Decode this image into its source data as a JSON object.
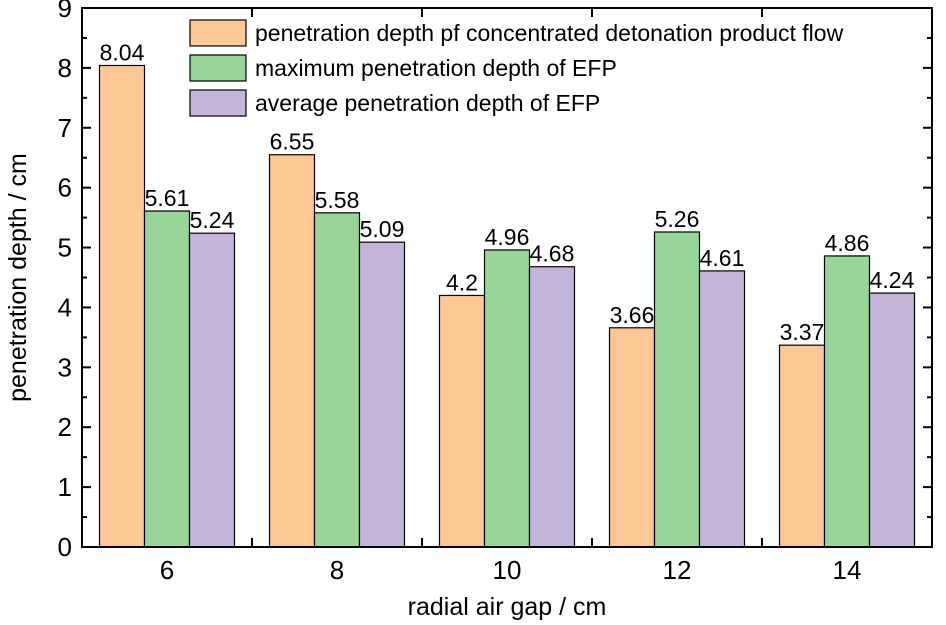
{
  "chart_data": {
    "type": "bar",
    "title": "",
    "xlabel": "radial air gap / cm",
    "ylabel": "penetration depth / cm",
    "categories": [
      "6",
      "8",
      "10",
      "12",
      "14"
    ],
    "ylim": [
      0,
      9
    ],
    "yticks": [
      "0",
      "1",
      "2",
      "3",
      "4",
      "5",
      "6",
      "7",
      "8",
      "9"
    ],
    "grid": false,
    "legend_position": "top-right",
    "series": [
      {
        "name": "penetration depth pf concentrated detonation product flow",
        "color": "#FDC895",
        "values": [
          8.04,
          6.55,
          4.2,
          3.66,
          3.37
        ],
        "labels": [
          "8.04",
          "6.55",
          "4.2",
          "3.66",
          "3.37"
        ]
      },
      {
        "name": "maximum penetration depth of EFP",
        "color": "#97D697",
        "values": [
          5.61,
          5.58,
          4.96,
          5.26,
          4.86
        ],
        "labels": [
          "5.61",
          "5.58",
          "4.96",
          "5.26",
          "4.86"
        ]
      },
      {
        "name": "average penetration depth of EFP",
        "color": "#C3B4DA",
        "values": [
          5.24,
          5.09,
          4.68,
          4.61,
          4.24
        ],
        "labels": [
          "5.24",
          "5.09",
          "4.68",
          "4.61",
          "4.24"
        ]
      }
    ]
  }
}
